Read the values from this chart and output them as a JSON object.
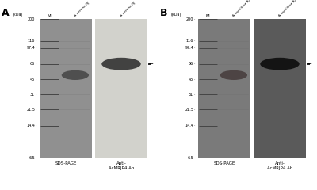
{
  "background_color": "#ffffff",
  "mw_vals": [
    200,
    116,
    97.4,
    66,
    45,
    31,
    21.5,
    14.4,
    6.5
  ],
  "mw_labels": [
    "200",
    "116",
    "97.4",
    "66",
    "45",
    "31",
    "21.5",
    "14.4",
    "6.5"
  ],
  "panel_A": {
    "label": "A",
    "gel_bg": "#909090",
    "wb_bg": "#d2d2cc",
    "sample_label_gel": "A. cerana RJ",
    "sample_label_wb": "A. cerana RJ",
    "gel_band_mw": 50,
    "gel_band_color": "#4a4a4a",
    "wb_band_mw": 66,
    "wb_band_color": "#3a3a3a",
    "sds_label": "SDS-PAGE",
    "ab_label": "Anti-\nAcMRJP4 Ab"
  },
  "panel_B": {
    "label": "B",
    "gel_bg": "#7a7a7a",
    "wb_bg": "#5a5a5a",
    "sample_label_gel": "A. mellifera RJ",
    "sample_label_wb": "A. mellifera RJ",
    "gel_band_mw": 50,
    "gel_band_color": "#4a4040",
    "wb_band_mw": 66,
    "wb_band_color": "#111111",
    "sds_label": "SDS-PAGE",
    "ab_label": "Anti-\nAcMRJP4 Ab"
  }
}
